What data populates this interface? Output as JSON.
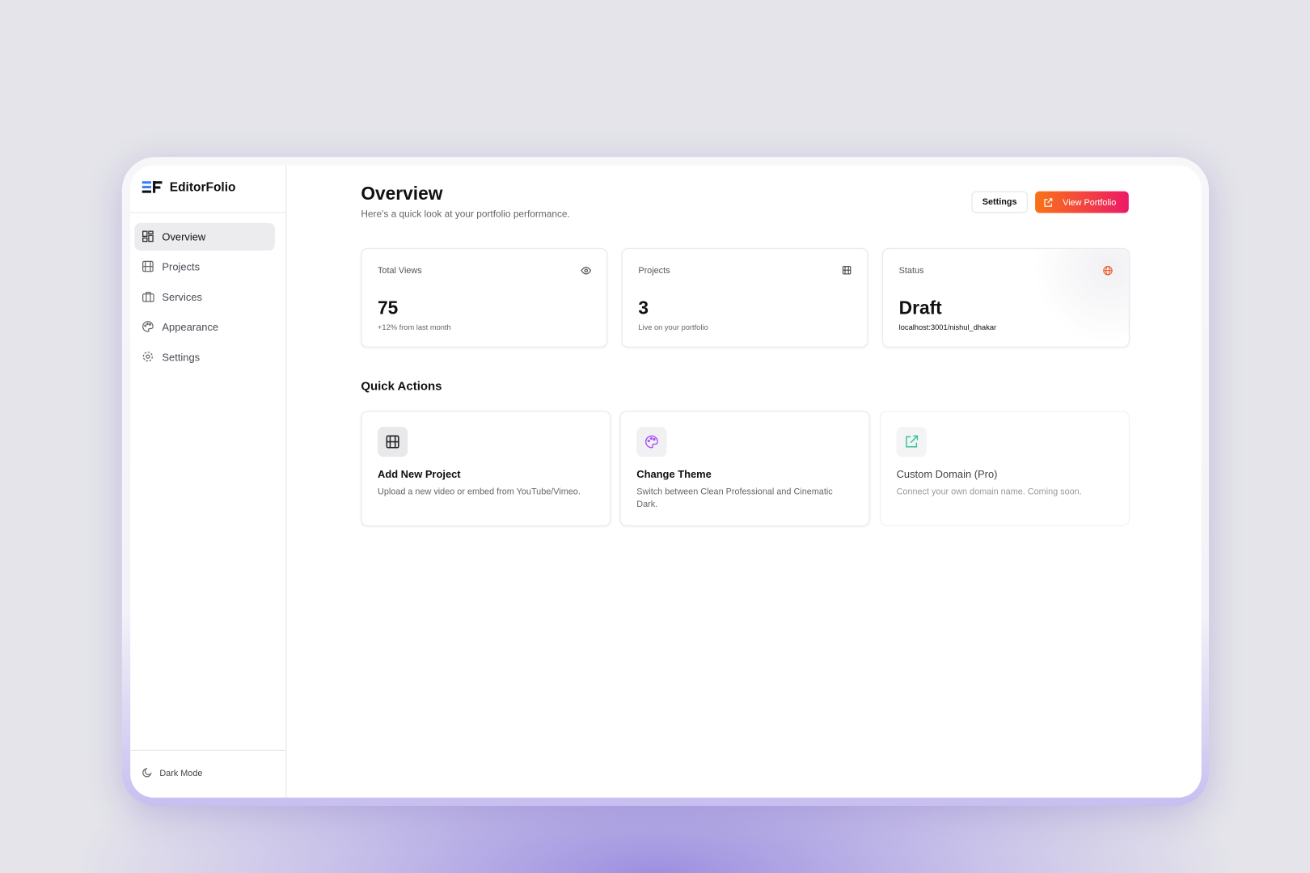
{
  "sidebar": {
    "brand": "EditorFolio",
    "nav": [
      "Overview",
      "Projects",
      "Services",
      "Appearance",
      "Settings"
    ],
    "dark_mode": "Dark Mode"
  },
  "header": {
    "title": "Overview",
    "subtitle": "Here's a quick look at your portfolio performance.",
    "buttons": [
      "Settings",
      "View Portfolio"
    ]
  },
  "stats": [
    {
      "label": "Total Views",
      "value": 75,
      "note": "+12% from last month"
    },
    {
      "label": "Projects",
      "value": 3,
      "note": "Live on your portfolio"
    },
    {
      "label": "Status",
      "value": "Draft",
      "note": "localhost:3001/nishul_dhakar"
    }
  ],
  "quick_actions": {
    "title": "Quick Actions",
    "items": [
      {
        "title": "Add New Project",
        "description": "Upload a new video or embed from YouTube/Vimeo."
      },
      {
        "title": "Change Theme",
        "description": "Switch between Clean Professional and Cinematic Dark."
      },
      {
        "title": "Custom Domain (Pro)",
        "description": "Connect your own domain name. Coming soon."
      }
    ]
  }
}
